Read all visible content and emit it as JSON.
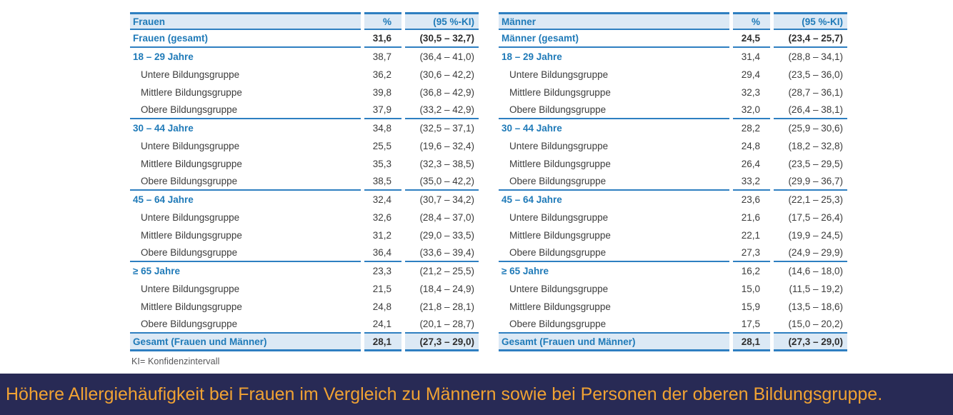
{
  "page": {
    "background": "#ffffff",
    "footnote": "KI= Konfidenzintervall"
  },
  "colors": {
    "line_blue": "#2e7fc1",
    "text_blue": "#1f7ab8",
    "row_highlight_blue": "#dce9f5",
    "body_text": "#3c3c3c",
    "banner_background": "#282a55",
    "banner_text": "#f0a233"
  },
  "banner": {
    "text": "Höhere Allergiehäufigkeit bei Frauen im Vergleich zu Männern sowie bei Personen der oberen Bildungsgruppe."
  },
  "tables": [
    {
      "title": "Frauen",
      "header": {
        "label": "Frauen",
        "pct": "%",
        "ci": "(95 %-KI)"
      },
      "total_row": {
        "label": "Frauen (gesamt)",
        "pct": "31,6",
        "ci": "(30,5 – 32,7)"
      },
      "sections": [
        {
          "age_row": {
            "label": "18 – 29 Jahre",
            "pct": "38,7",
            "ci": "(36,4 – 41,0)"
          },
          "education_rows": [
            {
              "label": "Untere Bildungsgruppe",
              "pct": "36,2",
              "ci": "(30,6 – 42,2)"
            },
            {
              "label": "Mittlere Bildungsgruppe",
              "pct": "39,8",
              "ci": "(36,8 – 42,9)"
            },
            {
              "label": "Obere Bildungsgruppe",
              "pct": "37,9",
              "ci": "(33,2 – 42,9)"
            }
          ]
        },
        {
          "age_row": {
            "label": "30 – 44 Jahre",
            "pct": "34,8",
            "ci": "(32,5 – 37,1)"
          },
          "education_rows": [
            {
              "label": "Untere Bildungsgruppe",
              "pct": "25,5",
              "ci": "(19,6 – 32,4)"
            },
            {
              "label": "Mittlere Bildungsgruppe",
              "pct": "35,3",
              "ci": "(32,3 – 38,5)"
            },
            {
              "label": "Obere Bildungsgruppe",
              "pct": "38,5",
              "ci": "(35,0 – 42,2)"
            }
          ]
        },
        {
          "age_row": {
            "label": "45 – 64 Jahre",
            "pct": "32,4",
            "ci": "(30,7 – 34,2)"
          },
          "education_rows": [
            {
              "label": "Untere Bildungsgruppe",
              "pct": "32,6",
              "ci": "(28,4 – 37,0)"
            },
            {
              "label": "Mittlere Bildungsgruppe",
              "pct": "31,2",
              "ci": "(29,0 – 33,5)"
            },
            {
              "label": "Obere Bildungsgruppe",
              "pct": "36,4",
              "ci": "(33,6 – 39,4)"
            }
          ]
        },
        {
          "age_row": {
            "label": "≥ 65 Jahre",
            "pct": "23,3",
            "ci": "(21,2 – 25,5)"
          },
          "education_rows": [
            {
              "label": "Untere Bildungsgruppe",
              "pct": "21,5",
              "ci": "(18,4 – 24,9)"
            },
            {
              "label": "Mittlere Bildungsgruppe",
              "pct": "24,8",
              "ci": "(21,8 – 28,1)"
            },
            {
              "label": "Obere Bildungsgruppe",
              "pct": "24,1",
              "ci": "(20,1 – 28,7)"
            }
          ]
        }
      ],
      "grand_total_row": {
        "label": "Gesamt (Frauen und Männer)",
        "pct": "28,1",
        "ci": "(27,3 – 29,0)"
      }
    },
    {
      "title": "Männer",
      "header": {
        "label": "Männer",
        "pct": "%",
        "ci": "(95 %-KI)"
      },
      "total_row": {
        "label": "Männer (gesamt)",
        "pct": "24,5",
        "ci": "(23,4 – 25,7)"
      },
      "sections": [
        {
          "age_row": {
            "label": "18 – 29 Jahre",
            "pct": "31,4",
            "ci": "(28,8 – 34,1)"
          },
          "education_rows": [
            {
              "label": "Untere Bildungsgruppe",
              "pct": "29,4",
              "ci": "(23,5 – 36,0)"
            },
            {
              "label": "Mittlere Bildungsgruppe",
              "pct": "32,3",
              "ci": "(28,7 – 36,1)"
            },
            {
              "label": "Obere Bildungsgruppe",
              "pct": "32,0",
              "ci": "(26,4 – 38,1)"
            }
          ]
        },
        {
          "age_row": {
            "label": "30 – 44 Jahre",
            "pct": "28,2",
            "ci": "(25,9 – 30,6)"
          },
          "education_rows": [
            {
              "label": "Untere Bildungsgruppe",
              "pct": "24,8",
              "ci": "(18,2 – 32,8)"
            },
            {
              "label": "Mittlere Bildungsgruppe",
              "pct": "26,4",
              "ci": "(23,5 – 29,5)"
            },
            {
              "label": "Obere Bildungsgruppe",
              "pct": "33,2",
              "ci": "(29,9 – 36,7)"
            }
          ]
        },
        {
          "age_row": {
            "label": "45 – 64 Jahre",
            "pct": "23,6",
            "ci": "(22,1 – 25,3)"
          },
          "education_rows": [
            {
              "label": "Untere Bildungsgruppe",
              "pct": "21,6",
              "ci": "(17,5 – 26,4)"
            },
            {
              "label": "Mittlere Bildungsgruppe",
              "pct": "22,1",
              "ci": "(19,9 – 24,5)"
            },
            {
              "label": "Obere Bildungsgruppe",
              "pct": "27,3",
              "ci": "(24,9 – 29,9)"
            }
          ]
        },
        {
          "age_row": {
            "label": "≥ 65 Jahre",
            "pct": "16,2",
            "ci": "(14,6 – 18,0)"
          },
          "education_rows": [
            {
              "label": "Untere Bildungsgruppe",
              "pct": "15,0",
              "ci": "(11,5 – 19,2)"
            },
            {
              "label": "Mittlere Bildungsgruppe",
              "pct": "15,9",
              "ci": "(13,5 – 18,6)"
            },
            {
              "label": "Obere Bildungsgruppe",
              "pct": "17,5",
              "ci": "(15,0 – 20,2)"
            }
          ]
        }
      ],
      "grand_total_row": {
        "label": "Gesamt (Frauen und Männer)",
        "pct": "28,1",
        "ci": "(27,3 – 29,0)"
      }
    }
  ]
}
